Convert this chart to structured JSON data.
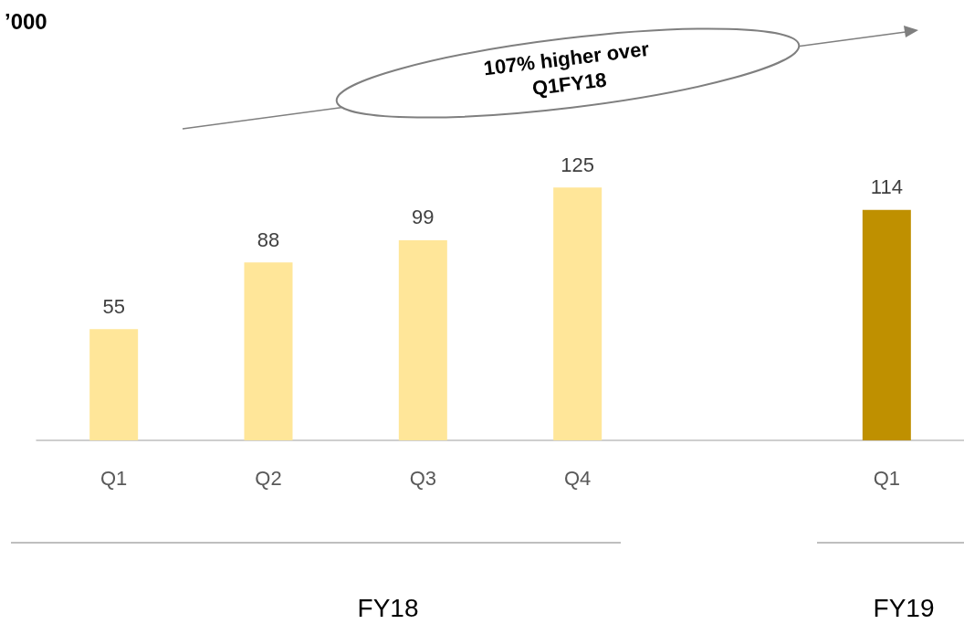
{
  "chart_data": {
    "type": "bar",
    "title": "’000",
    "categories": [
      "Q1",
      "Q2",
      "Q3",
      "Q4",
      null,
      "Q1"
    ],
    "values": [
      55,
      88,
      99,
      125,
      null,
      114
    ],
    "colors": [
      "#ffe699",
      "#ffe699",
      "#ffe699",
      "#ffe699",
      "#ffe699",
      "#bf9000"
    ],
    "data_labels": true,
    "annotations": [
      "107% higher over\nQ1FY18",
      "FY18",
      "FY19"
    ]
  }
}
